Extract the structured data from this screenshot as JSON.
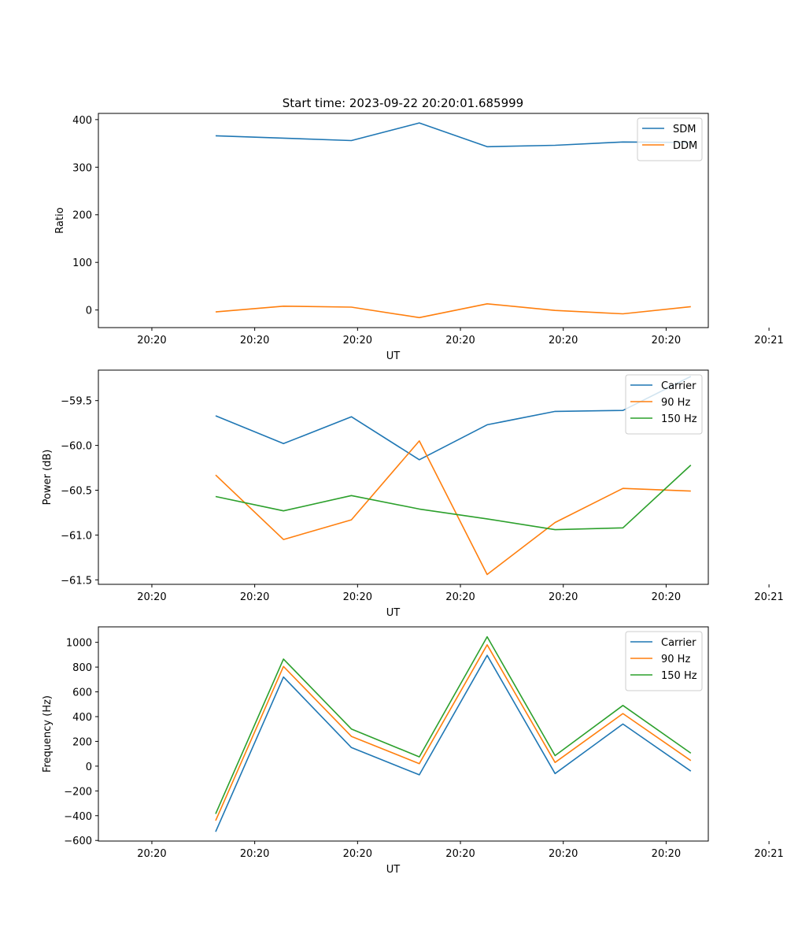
{
  "figure_title": "Start time: 2023-09-22 20:20:01.685999",
  "chart_data": [
    {
      "type": "line",
      "title": "Start time: 2023-09-22 20:20:01.685999",
      "xlabel": "UT",
      "ylabel": "Ratio",
      "x": [
        0.62,
        1.28,
        1.94,
        2.6,
        3.26,
        3.92,
        4.58,
        5.24
      ],
      "xlim": [
        -0.52,
        5.41
      ],
      "xticks": [
        0,
        1,
        2,
        3,
        4,
        5,
        6
      ],
      "xtick_labels": [
        "20:20",
        "20:20",
        "20:20",
        "20:20",
        "20:20",
        "20:20",
        "20:21"
      ],
      "ylim": [
        -37,
        413
      ],
      "yticks": [
        0,
        100,
        200,
        300,
        400
      ],
      "ytick_labels": [
        "0",
        "100",
        "200",
        "300",
        "400"
      ],
      "legend_position": "top-right",
      "series": [
        {
          "name": "SDM",
          "color": "#1f77b4",
          "values": [
            366,
            361,
            356,
            393,
            343,
            346,
            353,
            352
          ]
        },
        {
          "name": "DDM",
          "color": "#ff7f0e",
          "values": [
            -4,
            8,
            6,
            -16,
            13,
            -1,
            -8,
            7
          ]
        }
      ]
    },
    {
      "type": "line",
      "title": "",
      "xlabel": "UT",
      "ylabel": "Power (dB)",
      "x": [
        0.62,
        1.28,
        1.94,
        2.6,
        3.26,
        3.92,
        4.58,
        5.24
      ],
      "xlim": [
        -0.52,
        5.41
      ],
      "xticks": [
        0,
        1,
        2,
        3,
        4,
        5,
        6
      ],
      "xtick_labels": [
        "20:20",
        "20:20",
        "20:20",
        "20:20",
        "20:20",
        "20:20",
        "20:21"
      ],
      "ylim": [
        -61.55,
        -59.16
      ],
      "yticks": [
        -61.5,
        -61.0,
        -60.5,
        -60.0,
        -59.5
      ],
      "ytick_labels": [
        "−61.5",
        "−61.0",
        "−60.5",
        "−60.0",
        "−59.5"
      ],
      "legend_position": "top-right",
      "series": [
        {
          "name": "Carrier",
          "color": "#1f77b4",
          "values": [
            -59.67,
            -59.98,
            -59.68,
            -60.16,
            -59.77,
            -59.62,
            -59.61,
            -59.23
          ]
        },
        {
          "name": "90 Hz",
          "color": "#ff7f0e",
          "values": [
            -60.33,
            -61.05,
            -60.83,
            -59.95,
            -61.44,
            -60.86,
            -60.48,
            -60.51
          ]
        },
        {
          "name": "150 Hz",
          "color": "#2ca02c",
          "values": [
            -60.57,
            -60.73,
            -60.56,
            -60.71,
            -60.82,
            -60.94,
            -60.92,
            -60.22
          ]
        }
      ]
    },
    {
      "type": "line",
      "title": "",
      "xlabel": "UT",
      "ylabel": "Frequency (Hz)",
      "x": [
        0.62,
        1.28,
        1.94,
        2.6,
        3.26,
        3.92,
        4.58,
        5.24
      ],
      "xlim": [
        -0.52,
        5.41
      ],
      "xticks": [
        0,
        1,
        2,
        3,
        4,
        5,
        6
      ],
      "xtick_labels": [
        "20:20",
        "20:20",
        "20:20",
        "20:20",
        "20:20",
        "20:20",
        "20:21"
      ],
      "ylim": [
        -605,
        1125
      ],
      "yticks": [
        -600,
        -400,
        -200,
        0,
        200,
        400,
        600,
        800,
        1000
      ],
      "ytick_labels": [
        "−600",
        "−400",
        "−200",
        "0",
        "200",
        "400",
        "600",
        "800",
        "1000"
      ],
      "legend_position": "top-right",
      "series": [
        {
          "name": "Carrier",
          "color": "#1f77b4",
          "values": [
            -530,
            720,
            150,
            -70,
            895,
            -60,
            340,
            -40
          ]
        },
        {
          "name": "90 Hz",
          "color": "#ff7f0e",
          "values": [
            -440,
            805,
            240,
            20,
            980,
            30,
            425,
            45
          ]
        },
        {
          "name": "150 Hz",
          "color": "#2ca02c",
          "values": [
            -385,
            865,
            300,
            75,
            1045,
            85,
            490,
            105
          ]
        }
      ]
    }
  ]
}
